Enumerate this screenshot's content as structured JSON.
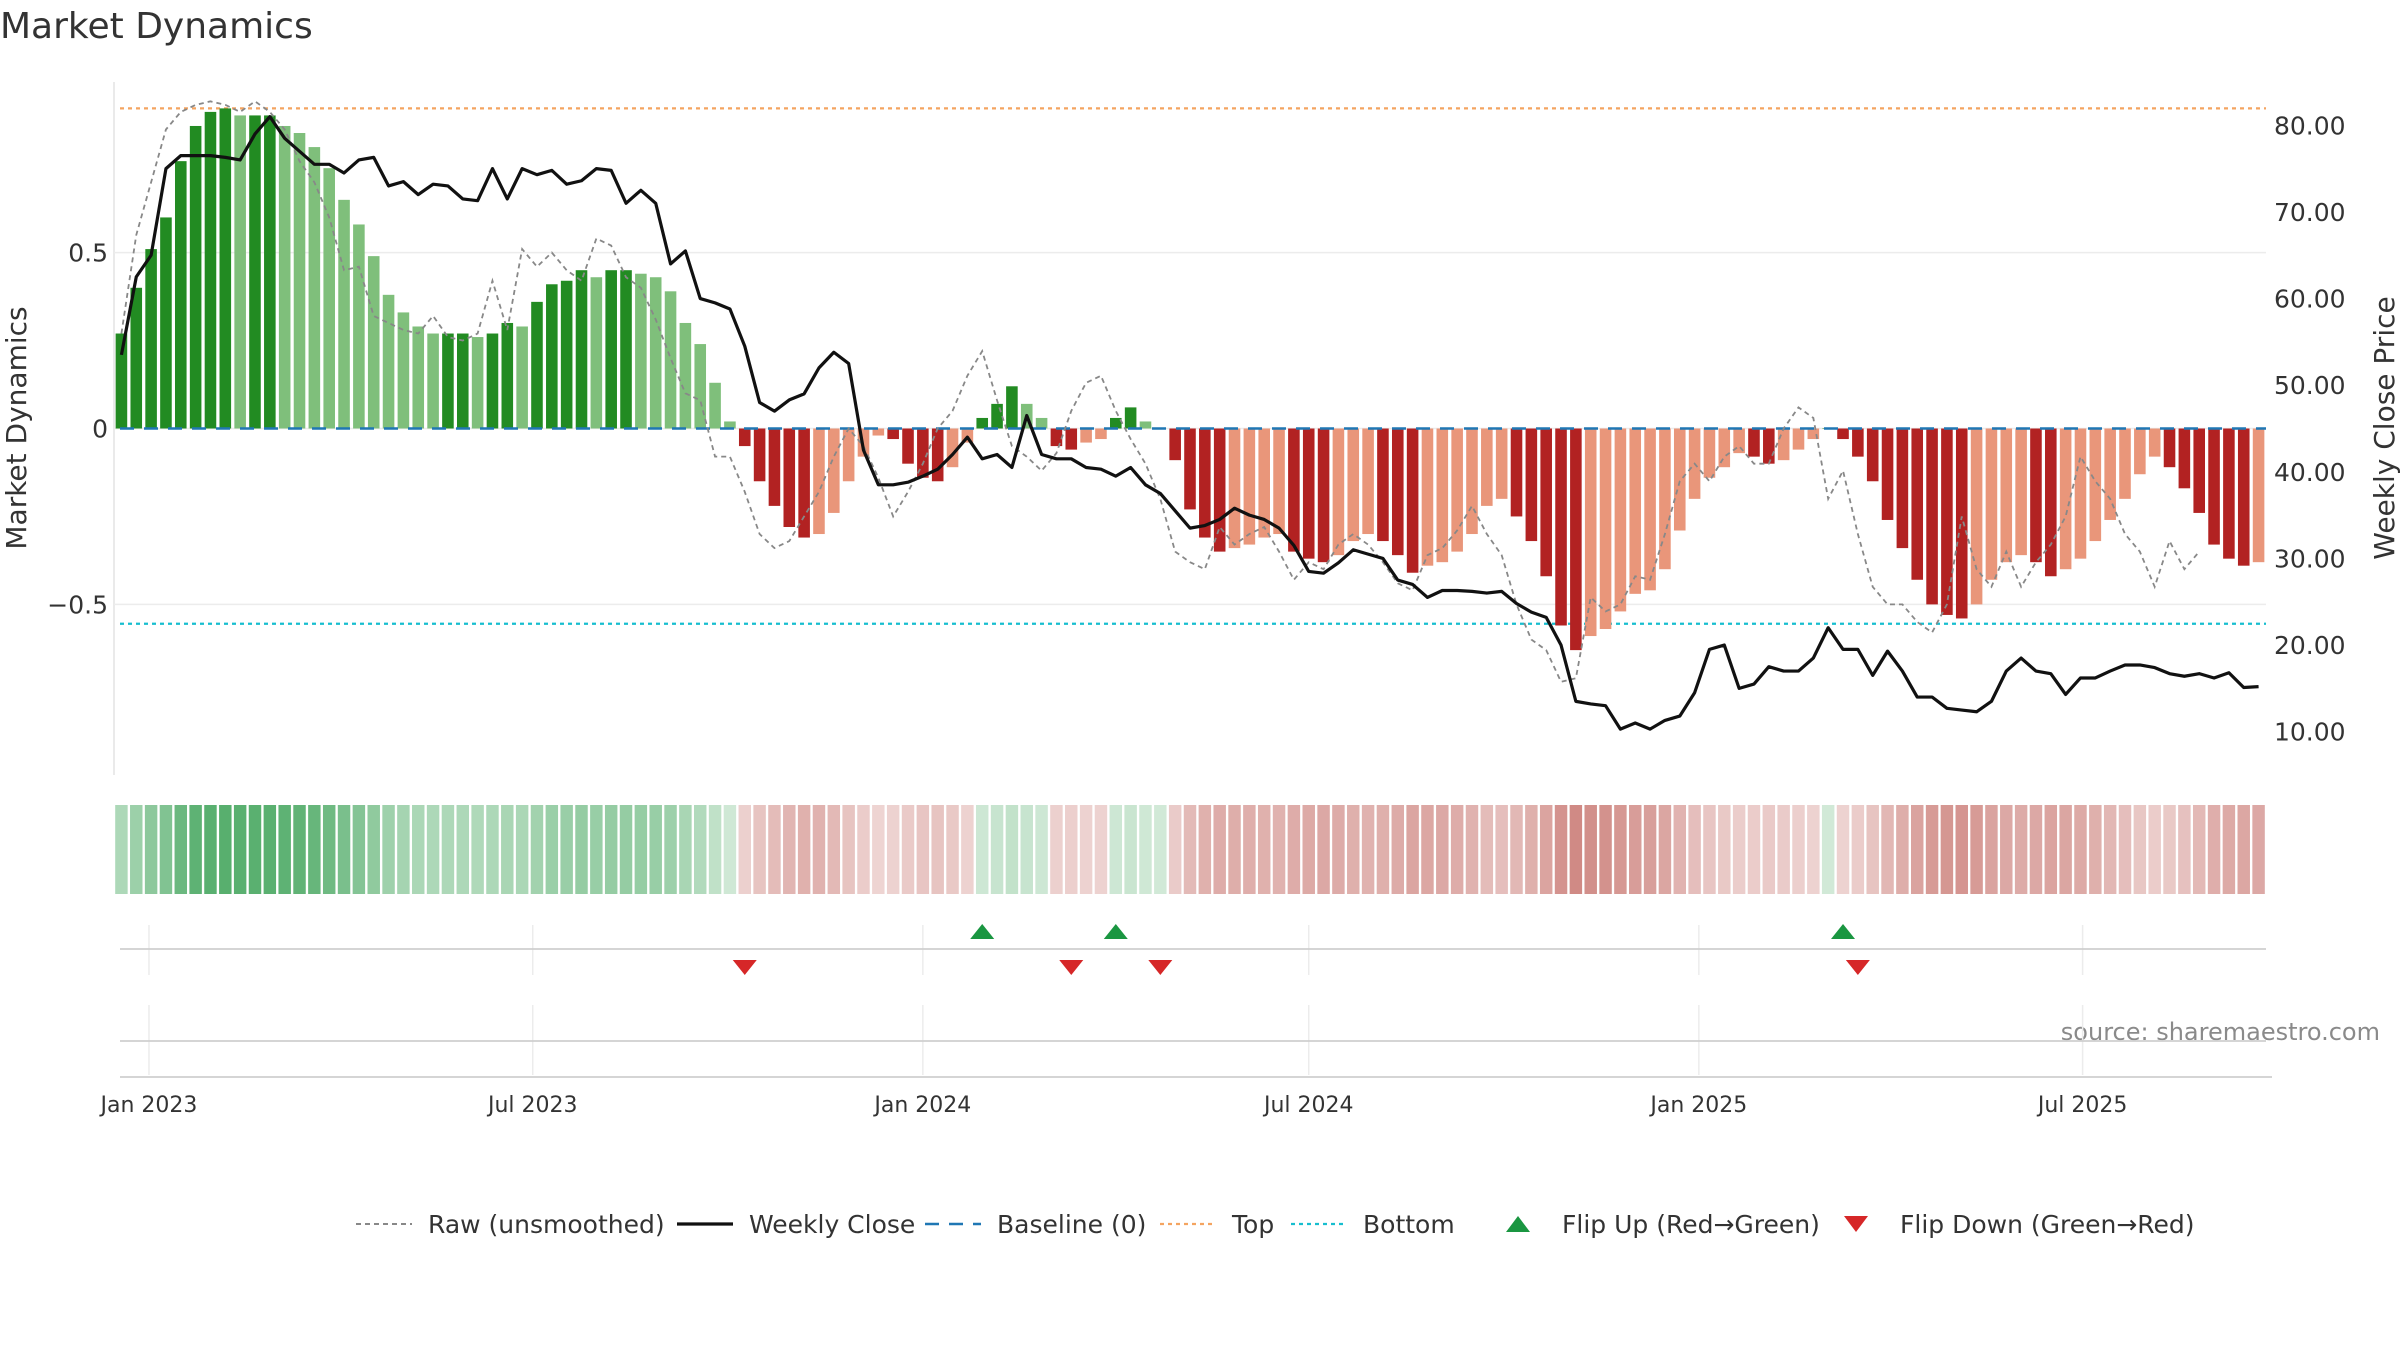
{
  "chart_data": {
    "type": "bar",
    "title": "Market Dynamics",
    "y_left_label": "Market Dynamics",
    "y_right_label": "Weekly Close Price",
    "source_note": "source: sharemaestro.com",
    "x_date_start": "2022-12-19",
    "x_date_step_days": 7,
    "left_axis": {
      "ylim": [
        -0.985,
        0.985
      ],
      "ticks": [
        0.5,
        0,
        -0.5
      ],
      "tick_labels": [
        "0.5",
        "0",
        "−0.5"
      ]
    },
    "right_axis": {
      "ylim": [
        5,
        85
      ],
      "ticks": [
        80,
        70,
        60,
        50,
        40,
        30,
        20,
        10
      ],
      "tick_labels": [
        "80.00",
        "70.00",
        "60.00",
        "50.00",
        "40.00",
        "30.00",
        "20.00",
        "10.00"
      ]
    },
    "x_ticks": [
      {
        "date": "2023-01-01",
        "label": "Jan 2023"
      },
      {
        "date": "2023-07-01",
        "label": "Jul 2023"
      },
      {
        "date": "2024-01-01",
        "label": "Jan 2024"
      },
      {
        "date": "2024-07-01",
        "label": "Jul 2024"
      },
      {
        "date": "2025-01-01",
        "label": "Jan 2025"
      },
      {
        "date": "2025-07-01",
        "label": "Jul 2025"
      }
    ],
    "top_level": 0.91,
    "bottom_level": -0.555,
    "baseline": 0,
    "colors": {
      "strong_pos": "#228b22",
      "weak_pos": "#7fbf7b",
      "strong_neg": "#b22222",
      "weak_neg": "#e9967a",
      "close": "#111111",
      "raw": "#888888",
      "baseline": "#1f77b4",
      "top": "#f4a460",
      "bottom": "#17becf",
      "flip_up": "#1a9641",
      "flip_down": "#d62728"
    },
    "series": [
      {
        "name": "Market Dynamics (smoothed)",
        "values": [
          0.27,
          0.4,
          0.51,
          0.6,
          0.76,
          0.86,
          0.9,
          0.91,
          0.89,
          0.89,
          0.89,
          0.86,
          0.84,
          0.8,
          0.74,
          0.65,
          0.58,
          0.49,
          0.38,
          0.33,
          0.29,
          0.27,
          0.27,
          0.27,
          0.26,
          0.27,
          0.3,
          0.29,
          0.36,
          0.41,
          0.42,
          0.45,
          0.43,
          0.45,
          0.45,
          0.44,
          0.43,
          0.39,
          0.3,
          0.24,
          0.13,
          0.02,
          -0.05,
          -0.15,
          -0.22,
          -0.28,
          -0.31,
          -0.3,
          -0.24,
          -0.15,
          -0.08,
          -0.02,
          -0.03,
          -0.1,
          -0.14,
          -0.15,
          -0.11,
          -0.04,
          0.03,
          0.07,
          0.12,
          0.07,
          0.03,
          -0.05,
          -0.06,
          -0.04,
          -0.03,
          0.03,
          0.06,
          0.02,
          0.0,
          -0.09,
          -0.23,
          -0.31,
          -0.35,
          -0.34,
          -0.33,
          -0.31,
          -0.3,
          -0.35,
          -0.37,
          -0.38,
          -0.36,
          -0.32,
          -0.3,
          -0.32,
          -0.36,
          -0.41,
          -0.39,
          -0.38,
          -0.35,
          -0.3,
          -0.22,
          -0.2,
          -0.25,
          -0.32,
          -0.42,
          -0.56,
          -0.63,
          -0.59,
          -0.57,
          -0.52,
          -0.47,
          -0.46,
          -0.4,
          -0.29,
          -0.2,
          -0.14,
          -0.11,
          -0.07,
          -0.08,
          -0.1,
          -0.09,
          -0.06,
          -0.03,
          0.0,
          -0.03,
          -0.08,
          -0.15,
          -0.26,
          -0.34,
          -0.43,
          -0.5,
          -0.53,
          -0.54,
          -0.5,
          -0.43,
          -0.38,
          -0.36,
          -0.38,
          -0.42,
          -0.4,
          -0.37,
          -0.32,
          -0.26,
          -0.2,
          -0.13,
          -0.08,
          -0.11,
          -0.17,
          -0.24,
          -0.33,
          -0.37,
          -0.39,
          -0.38
        ]
      },
      {
        "name": "Raw (unsmoothed)",
        "values": [
          0.27,
          0.55,
          0.7,
          0.85,
          0.9,
          0.92,
          0.93,
          0.92,
          0.9,
          0.93,
          0.9,
          0.85,
          0.76,
          0.7,
          0.6,
          0.45,
          0.46,
          0.32,
          0.3,
          0.28,
          0.27,
          0.32,
          0.26,
          0.25,
          0.27,
          0.42,
          0.28,
          0.51,
          0.46,
          0.5,
          0.45,
          0.42,
          0.54,
          0.52,
          0.43,
          0.4,
          0.31,
          0.2,
          0.1,
          0.08,
          -0.08,
          -0.08,
          -0.18,
          -0.3,
          -0.34,
          -0.32,
          -0.25,
          -0.18,
          -0.08,
          0.0,
          -0.05,
          -0.14,
          -0.25,
          -0.18,
          -0.1,
          0.0,
          0.05,
          0.15,
          0.22,
          0.08,
          -0.05,
          -0.08,
          -0.12,
          -0.07,
          0.05,
          0.13,
          0.15,
          0.05,
          -0.03,
          -0.1,
          -0.2,
          -0.35,
          -0.38,
          -0.4,
          -0.28,
          -0.33,
          -0.3,
          -0.28,
          -0.35,
          -0.43,
          -0.38,
          -0.4,
          -0.33,
          -0.3,
          -0.33,
          -0.38,
          -0.44,
          -0.46,
          -0.36,
          -0.34,
          -0.29,
          -0.22,
          -0.3,
          -0.36,
          -0.5,
          -0.6,
          -0.63,
          -0.72,
          -0.71,
          -0.48,
          -0.52,
          -0.5,
          -0.42,
          -0.43,
          -0.3,
          -0.15,
          -0.1,
          -0.15,
          -0.08,
          -0.05,
          -0.1,
          -0.1,
          0.0,
          0.06,
          0.03,
          -0.2,
          -0.12,
          -0.3,
          -0.45,
          -0.5,
          -0.5,
          -0.55,
          -0.58,
          -0.5,
          -0.25,
          -0.4,
          -0.45,
          -0.35,
          -0.45,
          -0.38,
          -0.33,
          -0.25,
          -0.08,
          -0.15,
          -0.2,
          -0.3,
          -0.35,
          -0.45,
          -0.32,
          -0.4,
          -0.35
        ]
      },
      {
        "name": "Weekly Close",
        "values": [
          53.5,
          62.5,
          65.0,
          75.0,
          76.5,
          76.5,
          76.5,
          76.3,
          76.0,
          79.0,
          81.0,
          78.5,
          77.0,
          75.5,
          75.5,
          74.5,
          76.0,
          76.3,
          73.0,
          73.5,
          72.0,
          73.2,
          73.0,
          71.5,
          71.3,
          75.0,
          71.5,
          75.0,
          74.3,
          74.8,
          73.2,
          73.6,
          75.0,
          74.8,
          71.0,
          72.5,
          71.0,
          64.0,
          65.5,
          60.0,
          59.5,
          58.8,
          54.5,
          48.0,
          47.0,
          48.3,
          49.0,
          52.0,
          53.8,
          52.5,
          42.5,
          38.5,
          38.5,
          38.8,
          39.5,
          40.3,
          42.0,
          44.0,
          41.5,
          42.0,
          40.5,
          46.5,
          42.0,
          41.5,
          41.5,
          40.5,
          40.3,
          39.5,
          40.5,
          38.5,
          37.5,
          35.5,
          33.5,
          33.8,
          34.5,
          35.8,
          35.0,
          34.5,
          33.5,
          31.5,
          28.5,
          28.3,
          29.5,
          31.0,
          30.5,
          30.0,
          27.5,
          27.0,
          25.5,
          26.3,
          26.3,
          26.2,
          26.0,
          26.2,
          24.8,
          23.8,
          23.2,
          20.0,
          13.5,
          13.2,
          13.0,
          10.3,
          11.0,
          10.3,
          11.3,
          11.8,
          14.5,
          19.5,
          20.0,
          15.0,
          15.5,
          17.5,
          17.0,
          17.0,
          18.5,
          22.0,
          19.5,
          19.5,
          16.5,
          19.3,
          17.0,
          14.0,
          14.0,
          12.7,
          12.5,
          12.3,
          13.5,
          17.0,
          18.5,
          17.0,
          16.7,
          14.3,
          16.2,
          16.2,
          17.0,
          17.7,
          17.7,
          17.4,
          16.7,
          16.4,
          16.7,
          16.2,
          16.8,
          15.1,
          15.2
        ]
      }
    ],
    "flips_up": [
      58,
      67,
      116
    ],
    "flips_down": [
      42,
      64,
      70,
      117
    ],
    "legend": [
      {
        "key": "raw",
        "label": "Raw (unsmoothed)"
      },
      {
        "key": "close",
        "label": "Weekly Close"
      },
      {
        "key": "baseline",
        "label": "Baseline (0)"
      },
      {
        "key": "top",
        "label": "Top"
      },
      {
        "key": "bottom",
        "label": "Bottom"
      },
      {
        "key": "flip_up",
        "label": "Flip Up (Red→Green)"
      },
      {
        "key": "flip_down",
        "label": "Flip Down (Green→Red)"
      }
    ]
  }
}
